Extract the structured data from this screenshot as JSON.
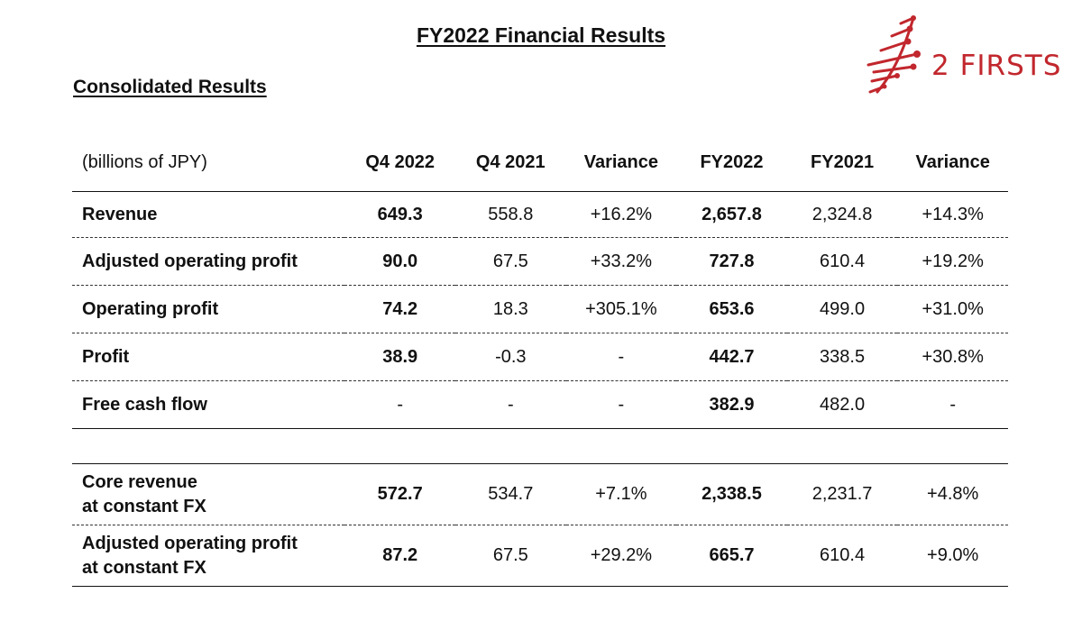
{
  "document": {
    "title": "FY2022 Financial Results",
    "subtitle": "Consolidated Results"
  },
  "logo": {
    "text": "2 FIRSTS",
    "color": "#c1272d"
  },
  "table": {
    "unit_label": "(billions of JPY)",
    "headers": [
      "Q4 2022",
      "Q4 2021",
      "Variance",
      "FY2022",
      "FY2021",
      "Variance"
    ],
    "rows": [
      {
        "label": "Revenue",
        "values": [
          "649.3",
          "558.8",
          "+16.2%",
          "2,657.8",
          "2,324.8",
          "+14.3%"
        ]
      },
      {
        "label": "Adjusted operating profit",
        "values": [
          "90.0",
          "67.5",
          "+33.2%",
          "727.8",
          "610.4",
          "+19.2%"
        ]
      },
      {
        "label": "Operating profit",
        "values": [
          "74.2",
          "18.3",
          "+305.1%",
          "653.6",
          "499.0",
          "+31.0%"
        ]
      },
      {
        "label": "Profit",
        "values": [
          "38.9",
          "-0.3",
          "-",
          "442.7",
          "338.5",
          "+30.8%"
        ]
      },
      {
        "label": "Free cash flow",
        "values": [
          "-",
          "-",
          "-",
          "382.9",
          "482.0",
          "-"
        ]
      }
    ],
    "rows_fx": [
      {
        "label_line1": "Core revenue",
        "label_line2": "at constant FX",
        "values": [
          "572.7",
          "534.7",
          "+7.1%",
          "2,338.5",
          "2,231.7",
          "+4.8%"
        ]
      },
      {
        "label_line1": "Adjusted operating profit",
        "label_line2": "at constant FX",
        "values": [
          "87.2",
          "67.5",
          "+29.2%",
          "665.7",
          "610.4",
          "+9.0%"
        ]
      }
    ]
  }
}
